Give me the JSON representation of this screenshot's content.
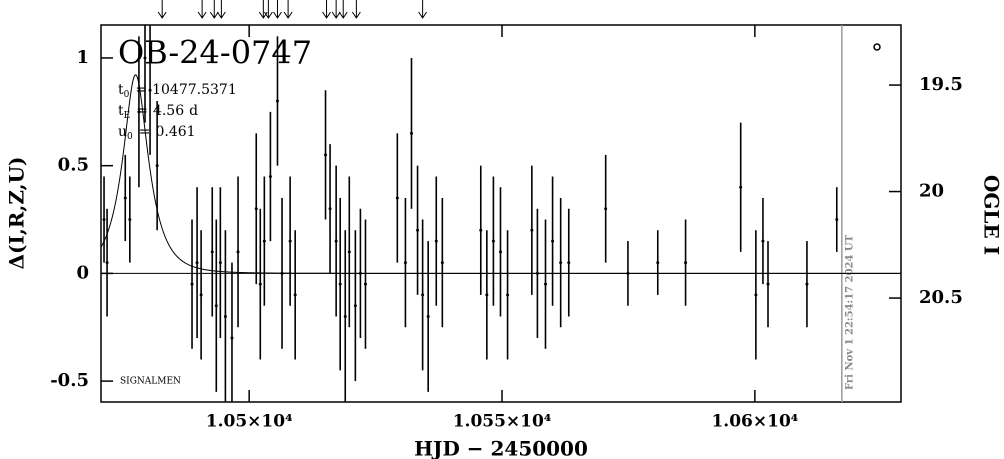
{
  "chart_data": {
    "type": "errorbar",
    "title": "OB-24-0747",
    "params": [
      {
        "name": "t",
        "sub": "0",
        "sign": "=",
        "value": 10477.5371
      },
      {
        "name": "t",
        "sub": "E",
        "sign": "=",
        "value": 4.56,
        "unit": "d"
      },
      {
        "name": "u",
        "sub": "0",
        "sign": "=",
        "value": 0.461
      }
    ],
    "credit": "SIGNALMEN",
    "timestamp": "Fri Nov  1 22:54:17 2024 UT",
    "timestamp_x": 10617.2,
    "xlabel": "HJD − 2450000",
    "ylabel": "Δ(I,R,Z,U)",
    "y2label": "OGLE I",
    "xlim": [
      10470.7,
      10628.9
    ],
    "xticks": [
      {
        "value": 10500,
        "label": "1.05×10⁴"
      },
      {
        "value": 10550,
        "label": "1.055×10⁴"
      },
      {
        "value": 10600,
        "label": "1.06×10⁴"
      }
    ],
    "ylim": [
      -0.597,
      1.153
    ],
    "yticks": [
      -0.5,
      0,
      0.5,
      1
    ],
    "y2lim": [
      20.988,
      19.218
    ],
    "y2ticks": [
      19.5,
      20,
      20.5
    ],
    "arrows": [
      10482.8,
      10490.7,
      10493.1,
      10494.5,
      10502.8,
      10503.8,
      10505.6,
      10507.7,
      10515.3,
      10517.2,
      10518.6,
      10521.2,
      10534.3
    ],
    "series": [
      {
        "color": "#000000",
        "x": [
          10471.3,
          10471.9,
          10475.5,
          10476.4,
          10478.2,
          10479.4,
          10480.4,
          10481.8,
          10488.7,
          10489.7,
          10490.5,
          10492.7,
          10493.5,
          10494.3,
          10495.3,
          10496.6,
          10497.8,
          10501.4,
          10502.2,
          10503.0,
          10504.2,
          10505.6,
          10506.5,
          10508.1,
          10509.1,
          10515.1,
          10516.0,
          10517.2,
          10518.0,
          10519.0,
          10519.8,
          10521.0,
          10522.0,
          10523.0,
          10529.3,
          10530.9,
          10532.1,
          10533.3,
          10534.3,
          10535.4,
          10537.0,
          10538.2,
          10545.8,
          10547.0,
          10548.3,
          10549.7,
          10551.1,
          10555.9,
          10557.0,
          10558.6,
          10560.0,
          10561.6,
          10563.2,
          10570.5,
          10574.9,
          10580.8,
          10586.3,
          10597.2,
          10600.2,
          10601.6,
          10602.6,
          10610.3,
          10616.2
        ],
        "values": [
          0.25,
          0.05,
          0.35,
          0.25,
          0.75,
          1.0,
          0.85,
          0.5,
          -0.05,
          0.05,
          -0.1,
          0.1,
          -0.15,
          0.05,
          -0.2,
          -0.3,
          0.1,
          0.3,
          -0.05,
          0.15,
          0.45,
          0.8,
          0.0,
          0.15,
          -0.1,
          0.55,
          0.3,
          0.15,
          -0.05,
          -0.2,
          0.1,
          -0.15,
          0.0,
          -0.05,
          0.35,
          0.05,
          0.65,
          0.2,
          -0.1,
          -0.2,
          0.15,
          0.05,
          0.2,
          -0.1,
          0.15,
          0.1,
          -0.1,
          0.2,
          0.0,
          -0.05,
          0.15,
          0.05,
          0.05,
          0.3,
          0.0,
          0.05,
          0.05,
          0.4,
          -0.1,
          0.15,
          -0.05,
          -0.05,
          0.25
        ],
        "errors": [
          0.2,
          0.25,
          0.2,
          0.2,
          0.35,
          0.3,
          0.3,
          0.3,
          0.3,
          0.35,
          0.3,
          0.3,
          0.4,
          0.35,
          0.4,
          0.35,
          0.35,
          0.35,
          0.35,
          0.3,
          0.3,
          0.3,
          0.35,
          0.3,
          0.3,
          0.3,
          0.3,
          0.35,
          0.4,
          0.4,
          0.35,
          0.35,
          0.3,
          0.3,
          0.3,
          0.3,
          0.35,
          0.3,
          0.35,
          0.35,
          0.3,
          0.3,
          0.3,
          0.3,
          0.3,
          0.3,
          0.3,
          0.3,
          0.3,
          0.3,
          0.3,
          0.3,
          0.25,
          0.25,
          0.15,
          0.15,
          0.2,
          0.3,
          0.3,
          0.2,
          0.2,
          0.2,
          0.15
        ]
      }
    ]
  }
}
